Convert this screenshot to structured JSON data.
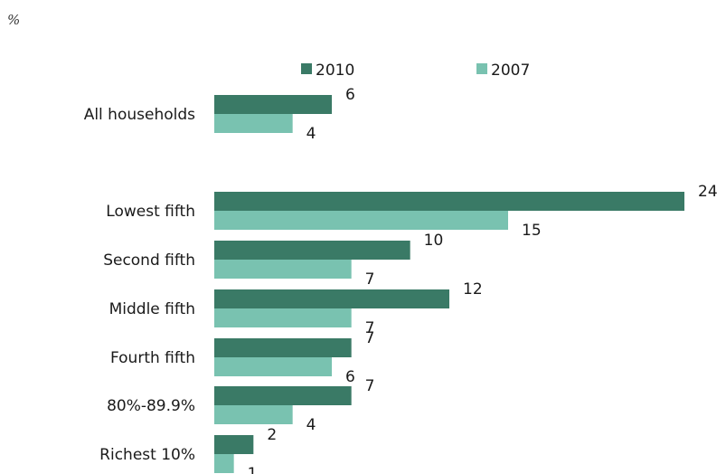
{
  "chart_data": {
    "type": "bar",
    "orientation": "horizontal",
    "unit_label": "%",
    "title": "",
    "xlabel": "",
    "ylabel": "",
    "xlim": [
      0,
      24
    ],
    "grid": false,
    "legend_position": "top",
    "categories": [
      "All households",
      "Lowest fifth",
      "Second fifth",
      "Middle fifth",
      "Fourth fifth",
      "80%-89.9%",
      "Richest 10%"
    ],
    "series": [
      {
        "name": "2010",
        "color": "#3a7a66",
        "values": [
          6,
          24,
          10,
          12,
          7,
          7,
          2
        ]
      },
      {
        "name": "2007",
        "color": "#79c2b0",
        "values": [
          4,
          15,
          7,
          7,
          6,
          4,
          1
        ]
      }
    ]
  }
}
